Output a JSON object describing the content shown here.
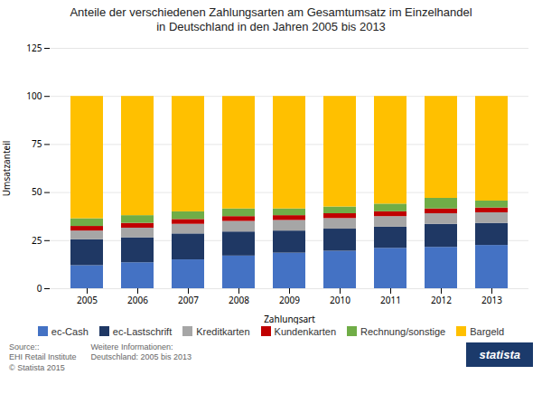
{
  "chart_data": {
    "type": "bar",
    "stacked": true,
    "title": "Anteile der verschiedenen Zahlungsarten am Gesamtumsatz im Einzelhandel\nin Deutschland in den Jahren 2005 bis 2013",
    "xlabel": "Zahlungsart",
    "ylabel": "Umsatzanteil",
    "categories": [
      "2005",
      "2006",
      "2007",
      "2008",
      "2009",
      "2010",
      "2011",
      "2012",
      "2013"
    ],
    "series": [
      {
        "name": "ec-Cash",
        "color": "#4472C4",
        "values": [
          12.0,
          13.5,
          15.0,
          17.0,
          18.5,
          19.5,
          21.0,
          21.5,
          22.5
        ]
      },
      {
        "name": "ec-Lastschrift",
        "color": "#1F3864",
        "values": [
          13.5,
          13.0,
          13.5,
          12.5,
          11.5,
          11.5,
          11.0,
          12.0,
          11.5
        ]
      },
      {
        "name": "Kreditkarten",
        "color": "#A6A6A6",
        "values": [
          4.5,
          5.0,
          5.0,
          5.5,
          5.5,
          5.5,
          5.5,
          5.5,
          5.5
        ]
      },
      {
        "name": "Kundenkarten",
        "color": "#C00000",
        "values": [
          2.4,
          2.5,
          2.5,
          2.5,
          2.5,
          2.5,
          2.5,
          2.5,
          2.5
        ]
      },
      {
        "name": "Rechnung/sonstige",
        "color": "#70AD47",
        "values": [
          4.0,
          4.0,
          4.0,
          4.0,
          3.5,
          3.5,
          4.0,
          5.5,
          3.6
        ]
      },
      {
        "name": "Bargeld",
        "color": "#FFC000",
        "values": [
          63.6,
          62.0,
          60.0,
          58.5,
          58.5,
          57.5,
          56.0,
          53.0,
          54.4
        ]
      }
    ],
    "ylim": [
      0,
      125
    ],
    "yticks": [
      0,
      25,
      50,
      75,
      100,
      125
    ],
    "grid": true,
    "legend": "bottom",
    "annotations": [
      "Source::\nEHI Retail Institute\n© Statista 2015",
      "Weitere Informationen:\nDeutschland: 2005 bis 2013",
      "statista"
    ]
  }
}
